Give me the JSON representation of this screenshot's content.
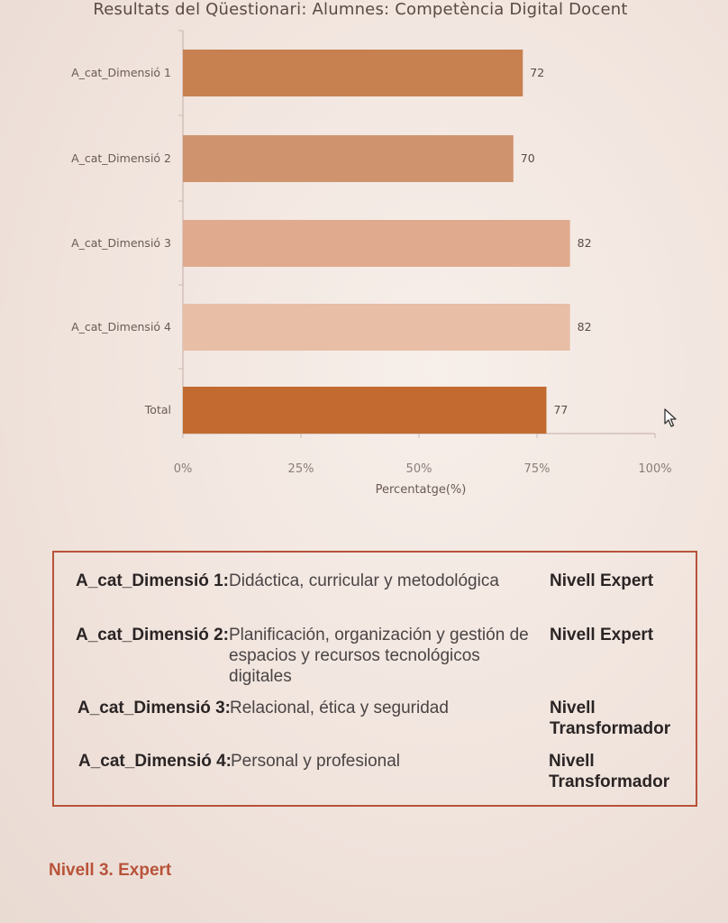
{
  "chart_data": {
    "type": "bar",
    "orientation": "horizontal",
    "title": "Resultats del Qüestionari: Alumnes: Competència Digital Docent",
    "categories": [
      "A_cat_Dimensió 1",
      "A_cat_Dimensió 2",
      "A_cat_Dimensió 3",
      "A_cat_Dimensió 4",
      "Total"
    ],
    "values": [
      72,
      70,
      82,
      82,
      77
    ],
    "value_labels": [
      "72",
      "70",
      "82",
      "82",
      "77"
    ],
    "bar_colors": [
      "#c78150",
      "#cf946e",
      "#e0aa8e",
      "#e8bea6",
      "#c26a30"
    ],
    "xlabel": "Percentatge(%)",
    "ylabel": "",
    "xlim": [
      0,
      100
    ],
    "xticks": [
      0,
      25,
      50,
      75,
      100
    ],
    "xtick_labels": [
      "0%",
      "25%",
      "50%",
      "75%",
      "100%"
    ],
    "grid": false,
    "legend": "none"
  },
  "summary": {
    "rows": [
      {
        "label": "A_cat_Dimensió 1:",
        "description": "Didáctica, curricular y metodológica",
        "level": "Nivell Expert"
      },
      {
        "label": "A_cat_Dimensió 2:",
        "description": "Planificación, organización y gestión de espacios y recursos tecnológicos digitales",
        "level": "Nivell Expert"
      },
      {
        "label": "A_cat_Dimensió 3:",
        "description": "Relacional, ética y seguridad",
        "level": "Nivell Transformador"
      },
      {
        "label": "A_cat_Dimensió 4:",
        "description": "Personal y profesional",
        "level": "Nivell Transformador"
      }
    ]
  },
  "footer": {
    "heading": "Nivell 3. Expert"
  },
  "colors": {
    "accent": "#b8533a",
    "axis": "#c9b8b0",
    "text": "#5b4a44"
  },
  "icons": {
    "cursor": "mouse-pointer-icon"
  }
}
